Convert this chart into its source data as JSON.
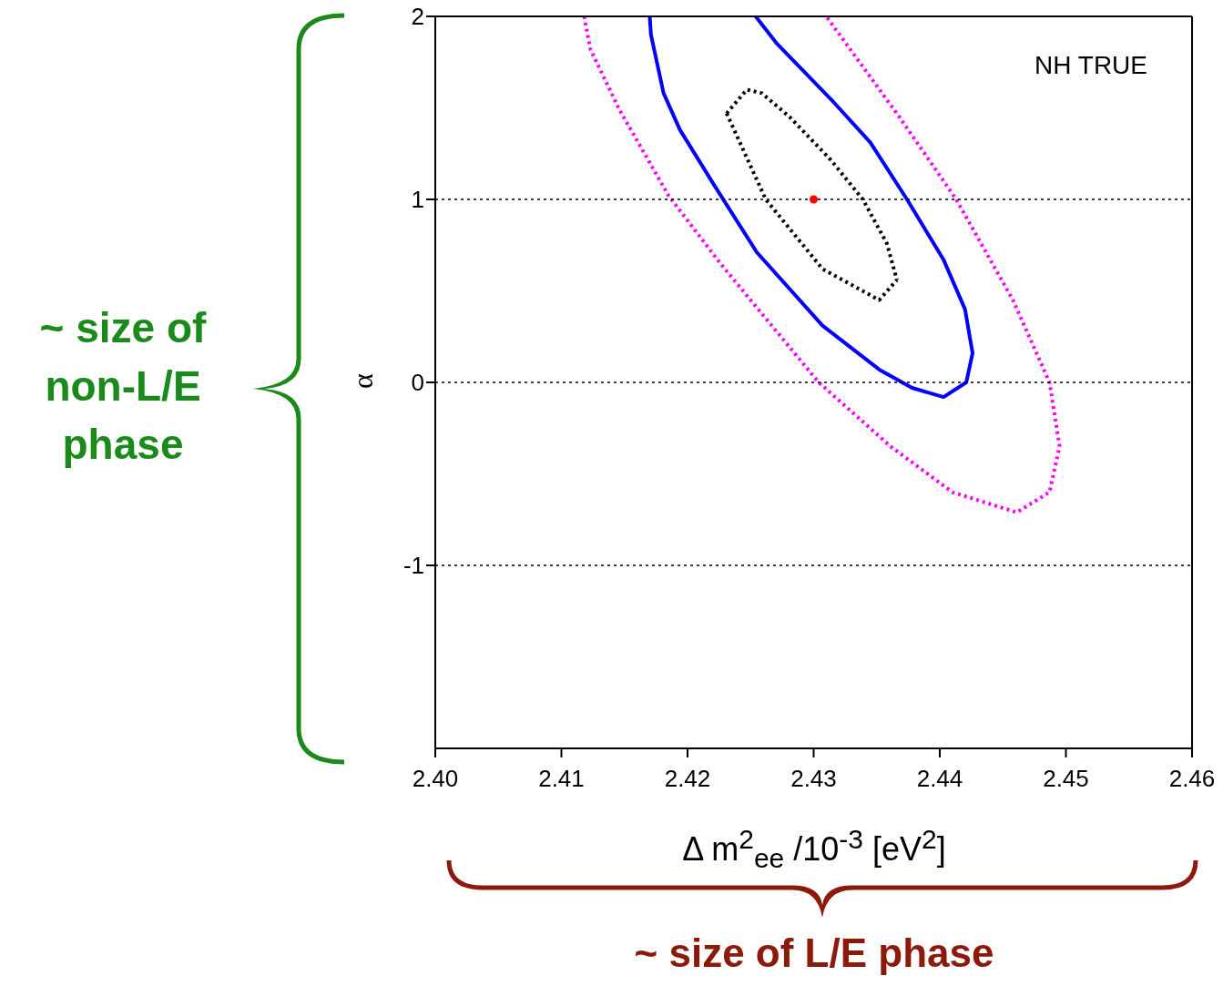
{
  "chart_data": {
    "type": "line",
    "xlabel": "Δ m$^{2}$$_{ee}$ /10$^{-3}$ [eV$^{2}$]",
    "ylabel": "α",
    "xlim": [
      2.4,
      2.46
    ],
    "ylim": [
      -2,
      2
    ],
    "xticks": [
      {
        "value": 2.4,
        "label": "2.40"
      },
      {
        "value": 2.41,
        "label": "2.41"
      },
      {
        "value": 2.42,
        "label": "2.42"
      },
      {
        "value": 2.43,
        "label": "2.43"
      },
      {
        "value": 2.44,
        "label": "2.44"
      },
      {
        "value": 2.45,
        "label": "2.45"
      },
      {
        "value": 2.46,
        "label": "2.46"
      }
    ],
    "yticks": [
      -1,
      0,
      1,
      2
    ],
    "grid": false,
    "legend": false,
    "marker": "none",
    "ref_lines": [
      {
        "axis": "y",
        "value": 1,
        "color": "#000000",
        "line_style": "dotted"
      },
      {
        "axis": "y",
        "value": 0,
        "color": "#000000",
        "line_style": "dotted"
      },
      {
        "axis": "y",
        "value": -1,
        "color": "#000000",
        "line_style": "dotted"
      }
    ],
    "series": [
      {
        "type": "line",
        "color": "#000000",
        "line_style": "dotted",
        "x": [
          2.4231,
          2.4247,
          2.4259,
          2.4281,
          2.4313,
          2.4339,
          2.4358,
          2.4366
        ],
        "values": [
          1.47,
          1.6,
          1.58,
          1.45,
          1.22,
          1.0,
          0.76,
          0.56
        ]
      },
      {
        "type": "line",
        "color": "#000000",
        "line_style": "dotted",
        "x": [
          2.4231,
          2.4262,
          2.4307,
          2.4352,
          2.4366
        ],
        "values": [
          1.47,
          1.0,
          0.62,
          0.45,
          0.56
        ]
      },
      {
        "type": "line",
        "color": "#0000ff",
        "line_style": "solid",
        "x": [
          2.417,
          2.4171,
          2.4181,
          2.4194,
          2.422,
          2.4255,
          2.4307,
          2.4352,
          2.4378,
          2.4403,
          2.4421,
          2.4426,
          2.442,
          2.4403,
          2.4374,
          2.4345,
          2.4316,
          2.4271,
          2.4254
        ],
        "values": [
          2.0,
          1.9,
          1.58,
          1.38,
          1.09,
          0.71,
          0.31,
          0.07,
          -0.03,
          -0.08,
          0.0,
          0.16,
          0.4,
          0.67,
          1.0,
          1.31,
          1.53,
          1.85,
          2.0
        ]
      },
      {
        "type": "line",
        "color": "#ff00ff",
        "line_style": "dotted",
        "x": [
          2.4118,
          2.4123,
          2.4146,
          2.4185,
          2.4226,
          2.4304,
          2.4361,
          2.441,
          2.4461,
          2.4487,
          2.4495,
          2.4487,
          2.4458,
          2.4413,
          2.4368,
          2.431
        ],
        "values": [
          2.0,
          1.82,
          1.49,
          1.02,
          0.65,
          0.0,
          -0.35,
          -0.6,
          -0.71,
          -0.6,
          -0.35,
          0.0,
          0.45,
          1.0,
          1.45,
          2.0
        ]
      },
      {
        "type": "scatter",
        "color": "#ff0000",
        "marker": "circle",
        "x": [
          2.43
        ],
        "values": [
          1.0
        ]
      }
    ],
    "annotations": [
      "NH TRUE",
      "~  size of\nnon-L/E\nphase",
      "~ size of L/E phase"
    ]
  }
}
